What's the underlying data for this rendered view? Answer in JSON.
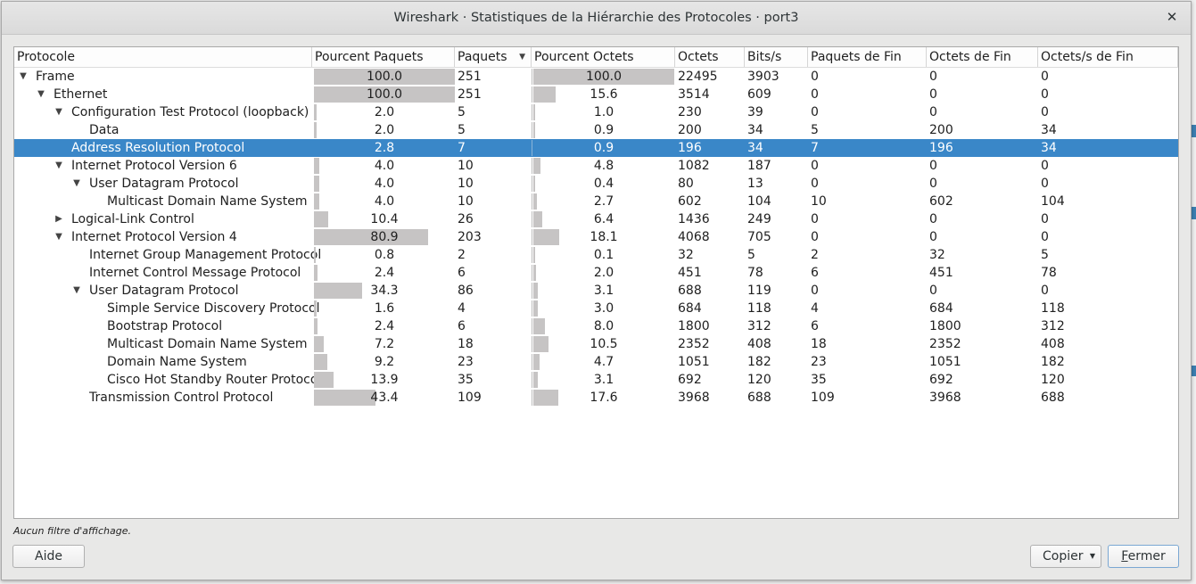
{
  "window": {
    "title": "Wireshark · Statistiques de la Hiérarchie des Protocoles · port3",
    "close_glyph": "✕"
  },
  "columns": [
    "Protocole",
    "Pourcent Paquets",
    "Paquets",
    "Pourcent Octets",
    "Octets",
    "Bits/s",
    "Paquets de Fin",
    "Octets de Fin",
    "Octets/s de Fin"
  ],
  "sort_indicator": "▼",
  "rows": [
    {
      "name": "Frame",
      "level": 0,
      "expander": "▼",
      "pct_packets": "100.0",
      "packets": "251",
      "pct_bytes": "100.0",
      "bytes": "22495",
      "bits_s": "3903",
      "end_packets": "0",
      "end_bytes": "0",
      "end_bits_s": "0"
    },
    {
      "name": "Ethernet",
      "level": 1,
      "expander": "▼",
      "pct_packets": "100.0",
      "packets": "251",
      "pct_bytes": "15.6",
      "bytes": "3514",
      "bits_s": "609",
      "end_packets": "0",
      "end_bytes": "0",
      "end_bits_s": "0"
    },
    {
      "name": "Configuration Test Protocol (loopback)",
      "level": 2,
      "expander": "▼",
      "pct_packets": "2.0",
      "packets": "5",
      "pct_bytes": "1.0",
      "bytes": "230",
      "bits_s": "39",
      "end_packets": "0",
      "end_bytes": "0",
      "end_bits_s": "0"
    },
    {
      "name": "Data",
      "level": 3,
      "expander": "",
      "pct_packets": "2.0",
      "packets": "5",
      "pct_bytes": "0.9",
      "bytes": "200",
      "bits_s": "34",
      "end_packets": "5",
      "end_bytes": "200",
      "end_bits_s": "34"
    },
    {
      "name": "Address Resolution Protocol",
      "level": 2,
      "expander": "",
      "selected": true,
      "pct_packets": "2.8",
      "packets": "7",
      "pct_bytes": "0.9",
      "bytes": "196",
      "bits_s": "34",
      "end_packets": "7",
      "end_bytes": "196",
      "end_bits_s": "34"
    },
    {
      "name": "Internet Protocol Version 6",
      "level": 2,
      "expander": "▼",
      "pct_packets": "4.0",
      "packets": "10",
      "pct_bytes": "4.8",
      "bytes": "1082",
      "bits_s": "187",
      "end_packets": "0",
      "end_bytes": "0",
      "end_bits_s": "0"
    },
    {
      "name": "User Datagram Protocol",
      "level": 3,
      "expander": "▼",
      "pct_packets": "4.0",
      "packets": "10",
      "pct_bytes": "0.4",
      "bytes": "80",
      "bits_s": "13",
      "end_packets": "0",
      "end_bytes": "0",
      "end_bits_s": "0"
    },
    {
      "name": "Multicast Domain Name System",
      "level": 4,
      "expander": "",
      "pct_packets": "4.0",
      "packets": "10",
      "pct_bytes": "2.7",
      "bytes": "602",
      "bits_s": "104",
      "end_packets": "10",
      "end_bytes": "602",
      "end_bits_s": "104"
    },
    {
      "name": "Logical-Link Control",
      "level": 2,
      "expander": "▶",
      "pct_packets": "10.4",
      "packets": "26",
      "pct_bytes": "6.4",
      "bytes": "1436",
      "bits_s": "249",
      "end_packets": "0",
      "end_bytes": "0",
      "end_bits_s": "0"
    },
    {
      "name": "Internet Protocol Version 4",
      "level": 2,
      "expander": "▼",
      "pct_packets": "80.9",
      "packets": "203",
      "pct_bytes": "18.1",
      "bytes": "4068",
      "bits_s": "705",
      "end_packets": "0",
      "end_bytes": "0",
      "end_bits_s": "0"
    },
    {
      "name": "Internet Group Management Protocol",
      "level": 3,
      "expander": "",
      "pct_packets": "0.8",
      "packets": "2",
      "pct_bytes": "0.1",
      "bytes": "32",
      "bits_s": "5",
      "end_packets": "2",
      "end_bytes": "32",
      "end_bits_s": "5"
    },
    {
      "name": "Internet Control Message Protocol",
      "level": 3,
      "expander": "",
      "pct_packets": "2.4",
      "packets": "6",
      "pct_bytes": "2.0",
      "bytes": "451",
      "bits_s": "78",
      "end_packets": "6",
      "end_bytes": "451",
      "end_bits_s": "78"
    },
    {
      "name": "User Datagram Protocol",
      "level": 3,
      "expander": "▼",
      "pct_packets": "34.3",
      "packets": "86",
      "pct_bytes": "3.1",
      "bytes": "688",
      "bits_s": "119",
      "end_packets": "0",
      "end_bytes": "0",
      "end_bits_s": "0"
    },
    {
      "name": "Simple Service Discovery Protocol",
      "level": 4,
      "expander": "",
      "pct_packets": "1.6",
      "packets": "4",
      "pct_bytes": "3.0",
      "bytes": "684",
      "bits_s": "118",
      "end_packets": "4",
      "end_bytes": "684",
      "end_bits_s": "118"
    },
    {
      "name": "Bootstrap Protocol",
      "level": 4,
      "expander": "",
      "pct_packets": "2.4",
      "packets": "6",
      "pct_bytes": "8.0",
      "bytes": "1800",
      "bits_s": "312",
      "end_packets": "6",
      "end_bytes": "1800",
      "end_bits_s": "312"
    },
    {
      "name": "Multicast Domain Name System",
      "level": 4,
      "expander": "",
      "pct_packets": "7.2",
      "packets": "18",
      "pct_bytes": "10.5",
      "bytes": "2352",
      "bits_s": "408",
      "end_packets": "18",
      "end_bytes": "2352",
      "end_bits_s": "408"
    },
    {
      "name": "Domain Name System",
      "level": 4,
      "expander": "",
      "pct_packets": "9.2",
      "packets": "23",
      "pct_bytes": "4.7",
      "bytes": "1051",
      "bits_s": "182",
      "end_packets": "23",
      "end_bytes": "1051",
      "end_bits_s": "182"
    },
    {
      "name": "Cisco Hot Standby Router Protocol",
      "level": 4,
      "expander": "",
      "pct_packets": "13.9",
      "packets": "35",
      "pct_bytes": "3.1",
      "bytes": "692",
      "bits_s": "120",
      "end_packets": "35",
      "end_bytes": "692",
      "end_bits_s": "120"
    },
    {
      "name": "Transmission Control Protocol",
      "level": 3,
      "expander": "",
      "pct_packets": "43.4",
      "packets": "109",
      "pct_bytes": "17.6",
      "bytes": "3968",
      "bits_s": "688",
      "end_packets": "109",
      "end_bytes": "3968",
      "end_bits_s": "688"
    }
  ],
  "status": "Aucun filtre d'affichage.",
  "buttons": {
    "help": "Aide",
    "copy": "Copier",
    "copy_arrow": "▼",
    "close_first": "F",
    "close_rest": "ermer"
  },
  "colors": {
    "selection": "#3a87c8",
    "bar": "#c6c4c4"
  }
}
